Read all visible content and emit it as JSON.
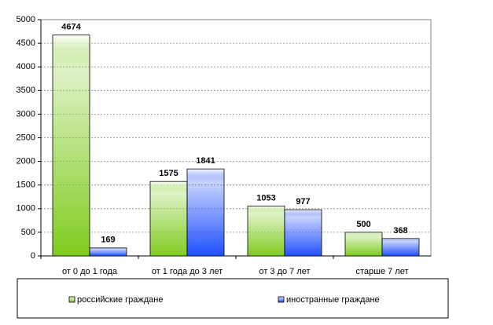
{
  "chart_data": {
    "type": "bar",
    "categories": [
      "от 0 до 1 года",
      "от 1 года до 3 лет",
      "от 3 до 7 лет",
      "старше 7 лет"
    ],
    "series": [
      {
        "name": "российские граждане",
        "color": "#80cc20",
        "values": [
          4674,
          1575,
          1053,
          500
        ]
      },
      {
        "name": "иностранные граждане",
        "color": "#2050ff",
        "values": [
          169,
          1841,
          977,
          368
        ]
      }
    ],
    "ylim": [
      0,
      5000
    ],
    "yticks": [
      0,
      500,
      1000,
      1500,
      2000,
      2500,
      3000,
      3500,
      4000,
      4500,
      5000
    ],
    "grid": true,
    "legend": "bottom"
  }
}
